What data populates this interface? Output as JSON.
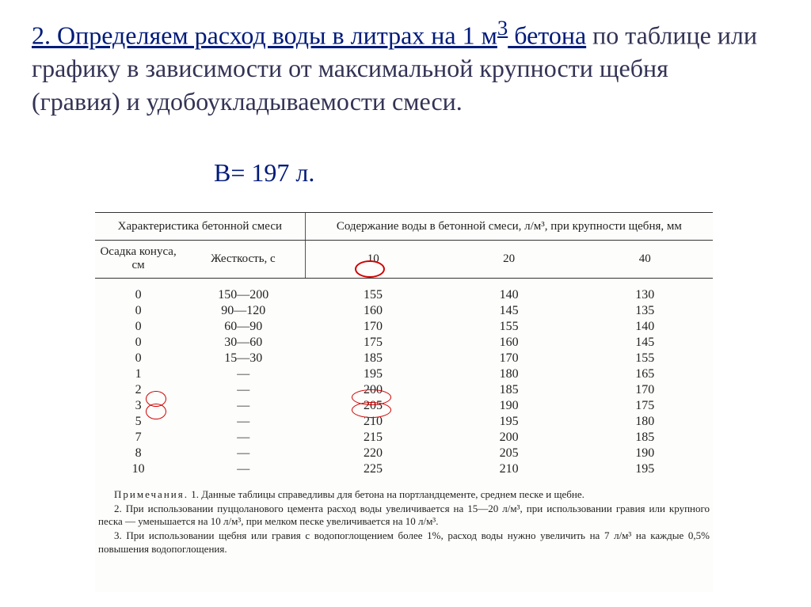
{
  "heading": {
    "underlined_part": "2. Определяем  расход   воды   в литрах на 1 м",
    "sup": "3",
    "underlined_part2": " бетона",
    "normal_part": " по таблице или графику в зависимости от максимальной крупности щебня (гравия) и удобоукладываемости смеси.",
    "result": "В= 197 л."
  },
  "table": {
    "group_header_left": "Характеристика бетонной смеси",
    "group_header_right": "Содержание воды в бетонной смеси, л/м³, при крупности щебня, мм",
    "sub_headers": {
      "col1": "Осадка конуса, см",
      "col2": "Жесткость, с",
      "col3": "10",
      "col4": "20",
      "col5": "40"
    },
    "rows": [
      {
        "c1": "0",
        "c2": "150—200",
        "c3": "155",
        "c4": "140",
        "c5": "130"
      },
      {
        "c1": "0",
        "c2": "90—120",
        "c3": "160",
        "c4": "145",
        "c5": "135"
      },
      {
        "c1": "0",
        "c2": "60—90",
        "c3": "170",
        "c4": "155",
        "c5": "140"
      },
      {
        "c1": "0",
        "c2": "30—60",
        "c3": "175",
        "c4": "160",
        "c5": "145"
      },
      {
        "c1": "0",
        "c2": "15—30",
        "c3": "185",
        "c4": "170",
        "c5": "155"
      },
      {
        "c1": "1",
        "c2": "—",
        "c3": "195",
        "c4": "180",
        "c5": "165"
      },
      {
        "c1": "2",
        "c2": "—",
        "c3": "200",
        "c4": "185",
        "c5": "170"
      },
      {
        "c1": "3",
        "c2": "—",
        "c3": "205",
        "c4": "190",
        "c5": "175"
      },
      {
        "c1": "5",
        "c2": "—",
        "c3": "210",
        "c4": "195",
        "c5": "180"
      },
      {
        "c1": "7",
        "c2": "—",
        "c3": "215",
        "c4": "200",
        "c5": "185"
      },
      {
        "c1": "8",
        "c2": "—",
        "c3": "220",
        "c4": "205",
        "c5": "190"
      },
      {
        "c1": "10",
        "c2": "—",
        "c3": "225",
        "c4": "210",
        "c5": "195"
      }
    ]
  },
  "notes": {
    "lead": "Примечания.",
    "n1": "1. Данные таблицы справедливы для бетона на портландцементе, среднем песке и щебне.",
    "n2": "2. При использовании пуццоланового цемента расход воды увеличивается на 15—20 л/м³, при использовании гравия или крупного песка — уменьшается на 10 л/м³, при мелком песке увеличивается на 10 л/м³.",
    "n3": "3. При использовании щебня или гравия с водопоглощением более 1%, расход воды нужно увеличить на 7 л/м³ на каждые 0,5% повышения водопоглощения."
  },
  "colors": {
    "heading": "#001a7a",
    "highlight": "#d00000",
    "text": "#222222",
    "background": "#ffffff"
  },
  "annotations": {
    "circled_header_col": "10",
    "circled_rows_c1": [
      "1",
      "2"
    ],
    "circled_rows_c3": [
      "195",
      "200"
    ]
  }
}
